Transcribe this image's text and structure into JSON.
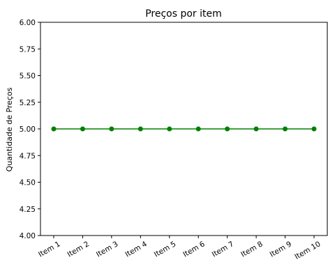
{
  "chart_data": {
    "type": "line",
    "title": "Preços por item",
    "xlabel": "",
    "ylabel": "Quantidade de Preços",
    "categories": [
      "Item 1",
      "Item 2",
      "Item 3",
      "Item 4",
      "Item 5",
      "Item 6",
      "Item 7",
      "Item 8",
      "Item 9",
      "Item 10"
    ],
    "series": [
      {
        "values": [
          5,
          5,
          5,
          5,
          5,
          5,
          5,
          5,
          5,
          5
        ]
      }
    ],
    "ylim": [
      4.0,
      6.0
    ],
    "yticks": [
      "4.00",
      "4.25",
      "4.50",
      "4.75",
      "5.00",
      "5.25",
      "5.50",
      "5.75",
      "6.00"
    ],
    "grid": false,
    "line_color": "#008000",
    "marker_color": "#008000",
    "marker": "circle"
  }
}
